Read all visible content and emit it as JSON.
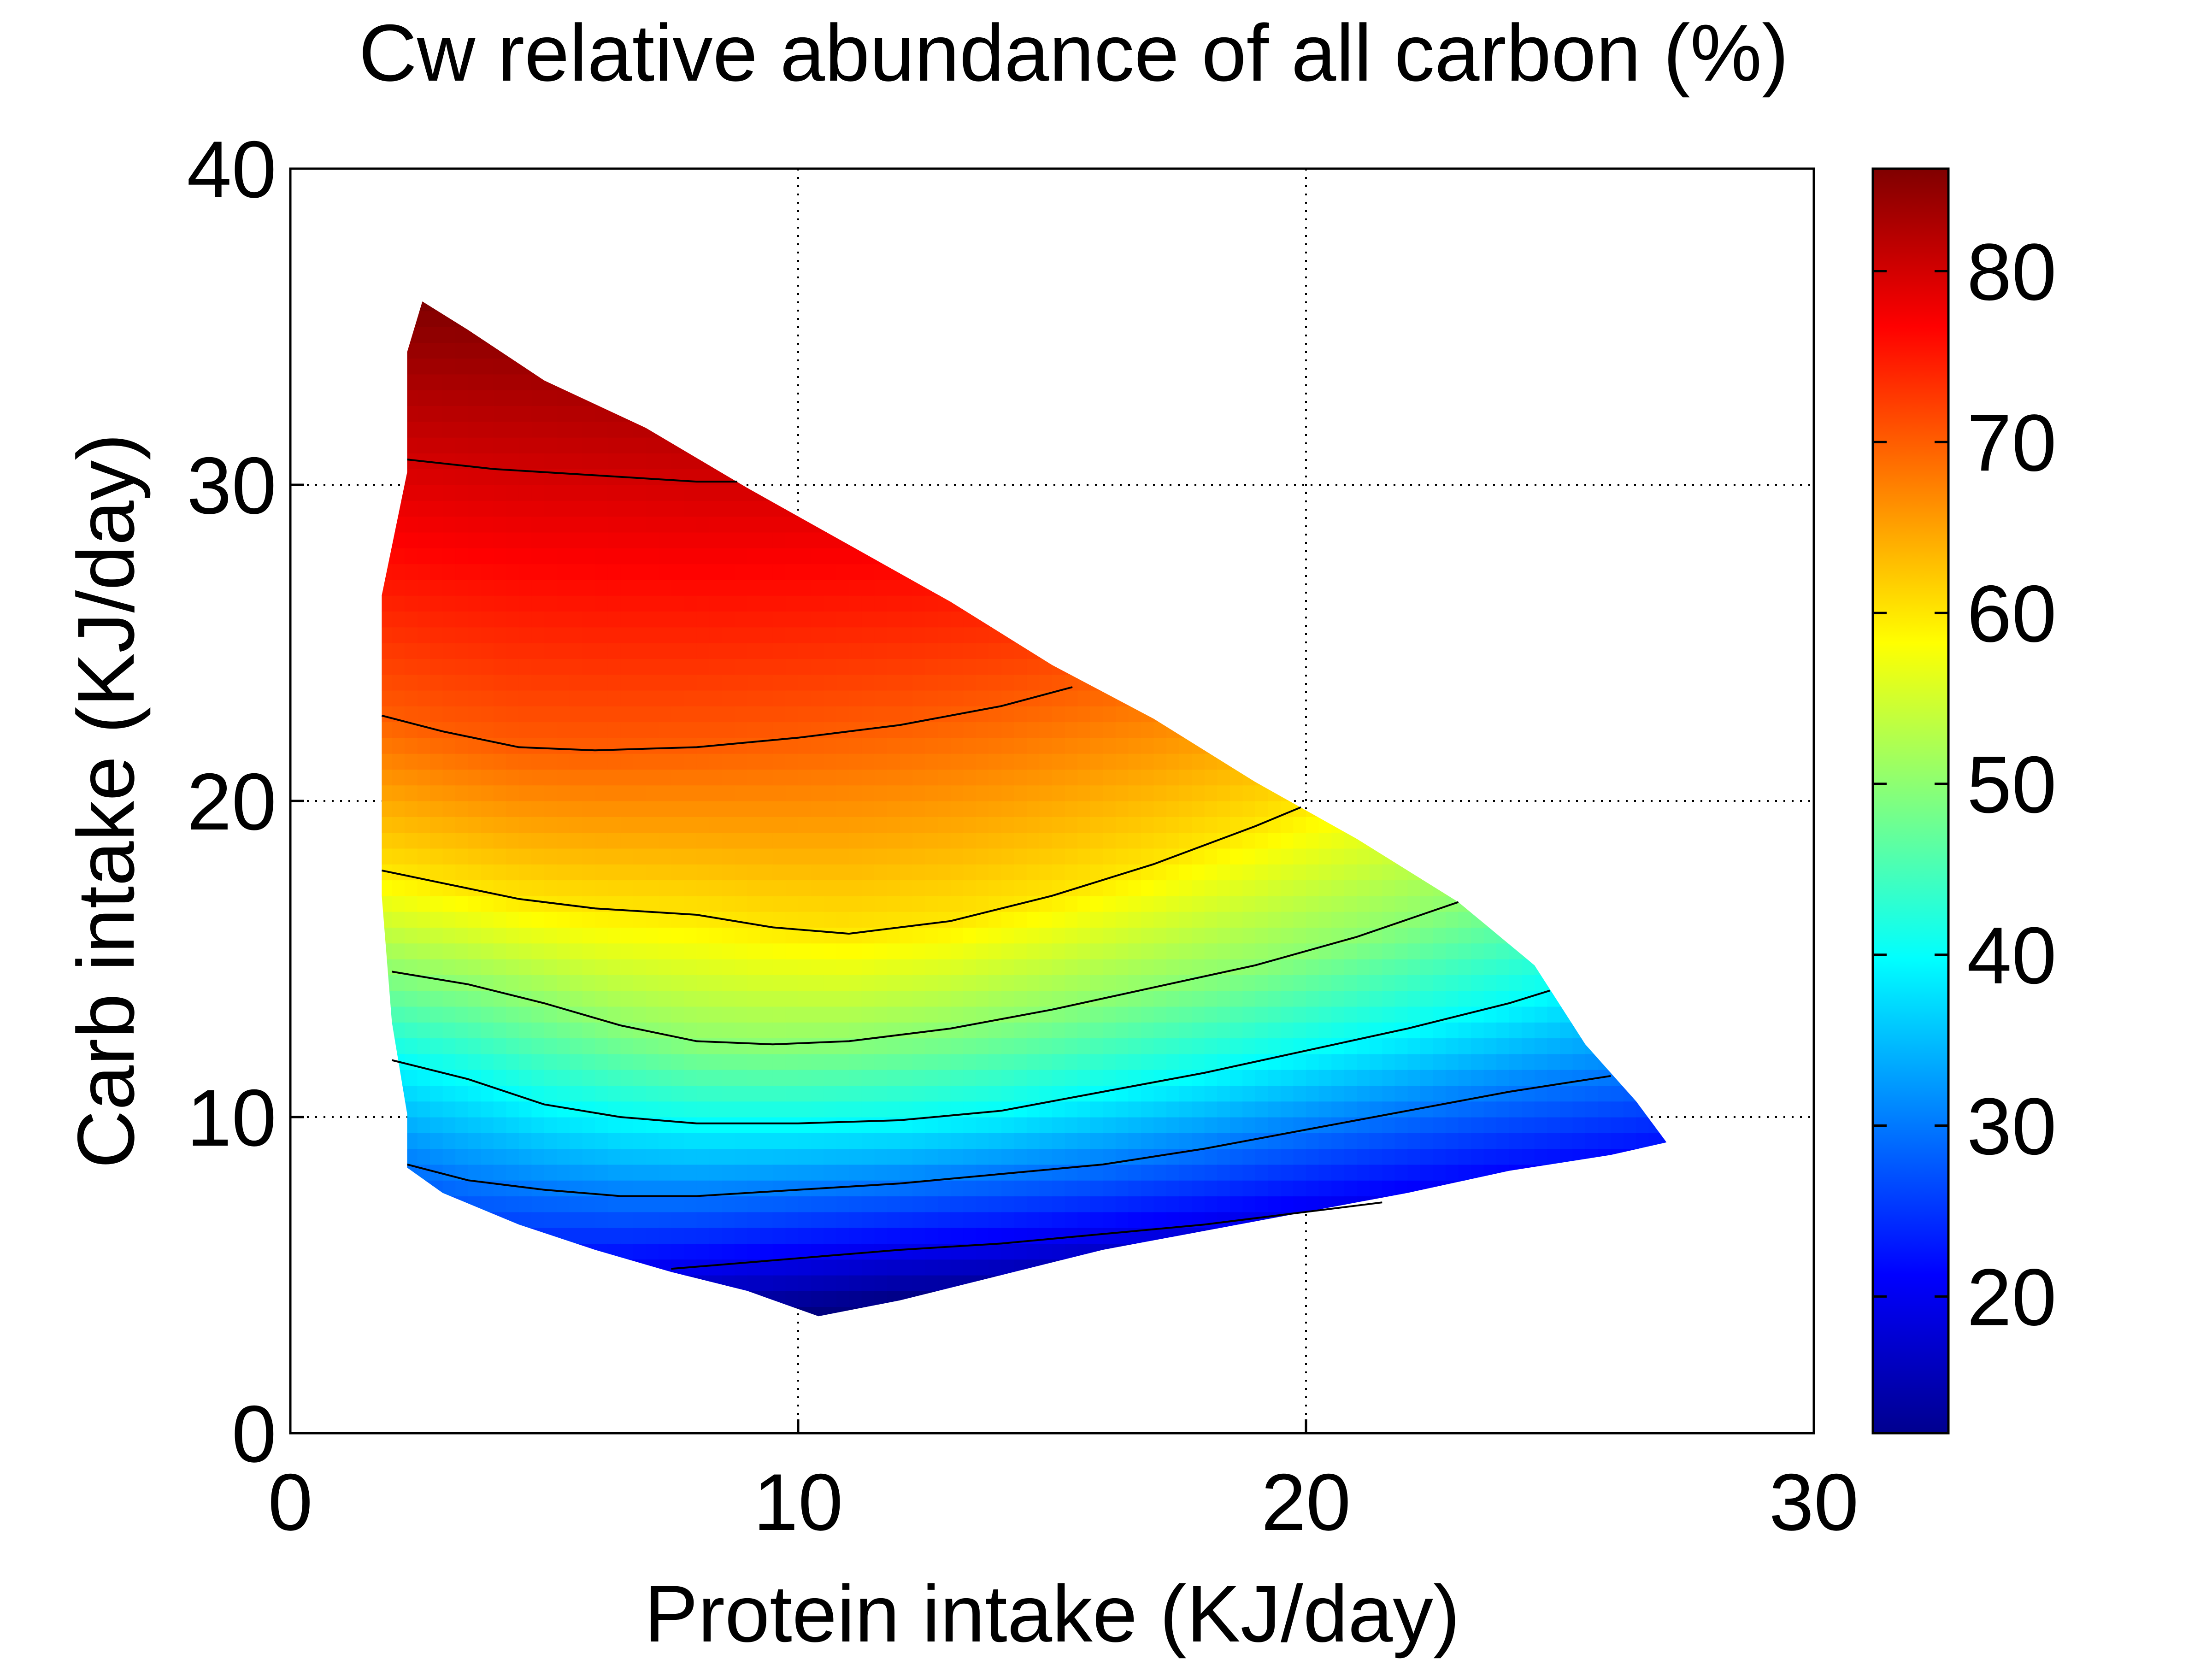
{
  "chart_data": {
    "type": "heatmap",
    "title": "Cw relative abundance of all carbon (%)",
    "xlabel": "Protein intake (KJ/day)",
    "ylabel": "Carb intake (KJ/day)",
    "xlim": [
      0,
      30
    ],
    "ylim": [
      0,
      40
    ],
    "x_ticks": [
      0,
      10,
      20,
      30
    ],
    "y_ticks": [
      0,
      10,
      20,
      30,
      40
    ],
    "grid": true,
    "colormap": "jet",
    "colorbar": {
      "range": [
        12,
        86
      ],
      "ticks": [
        20,
        30,
        40,
        50,
        60,
        70,
        80
      ],
      "placement": "right"
    },
    "domain_boundary": {
      "description_upper": "upper edge of the colored region (protein, carb)",
      "upper": [
        [
          1.8,
          26.5
        ],
        [
          2.3,
          30.4
        ],
        [
          2.3,
          34.2
        ],
        [
          2.6,
          35.8
        ],
        [
          3.5,
          34.9
        ],
        [
          5,
          33.3
        ],
        [
          7,
          31.8
        ],
        [
          9,
          29.9
        ],
        [
          11,
          28.1
        ],
        [
          13,
          26.3
        ],
        [
          15,
          24.3
        ],
        [
          17,
          22.6
        ],
        [
          19,
          20.6
        ],
        [
          21,
          18.8
        ],
        [
          23,
          16.8
        ],
        [
          24.5,
          14.8
        ],
        [
          25.5,
          12.3
        ],
        [
          26.5,
          10.5
        ],
        [
          27.1,
          9.2
        ]
      ],
      "lower": [
        [
          27.1,
          9.2
        ],
        [
          26,
          8.8
        ],
        [
          24,
          8.3
        ],
        [
          22,
          7.6
        ],
        [
          20,
          7.0
        ],
        [
          18,
          6.4
        ],
        [
          16,
          5.8
        ],
        [
          14,
          5.0
        ],
        [
          12,
          4.2
        ],
        [
          10.4,
          3.7
        ],
        [
          9,
          4.5
        ],
        [
          7.5,
          5.1
        ],
        [
          6,
          5.8
        ],
        [
          4.5,
          6.6
        ],
        [
          3,
          7.6
        ],
        [
          2.3,
          8.4
        ],
        [
          2.3,
          10.1
        ],
        [
          2.0,
          13.0
        ],
        [
          1.8,
          17.0
        ]
      ]
    },
    "contour_lines": [
      {
        "level": 80,
        "points": [
          [
            2.3,
            30.8
          ],
          [
            4,
            30.5
          ],
          [
            6,
            30.3
          ],
          [
            8,
            30.1
          ],
          [
            8.8,
            30.1
          ]
        ]
      },
      {
        "level": 70,
        "points": [
          [
            1.8,
            22.7
          ],
          [
            3,
            22.2
          ],
          [
            4.5,
            21.7
          ],
          [
            6,
            21.6
          ],
          [
            8,
            21.7
          ],
          [
            10,
            22.0
          ],
          [
            12,
            22.4
          ],
          [
            14,
            23.0
          ],
          [
            15.4,
            23.6
          ]
        ]
      },
      {
        "level": 60,
        "points": [
          [
            1.8,
            17.8
          ],
          [
            3,
            17.4
          ],
          [
            4.5,
            16.9
          ],
          [
            6,
            16.6
          ],
          [
            8,
            16.4
          ],
          [
            9.5,
            16.0
          ],
          [
            11,
            15.8
          ],
          [
            13,
            16.2
          ],
          [
            15,
            17.0
          ],
          [
            17,
            18.0
          ],
          [
            19,
            19.2
          ],
          [
            19.9,
            19.8
          ]
        ]
      },
      {
        "level": 50,
        "points": [
          [
            2.0,
            14.6
          ],
          [
            3.5,
            14.2
          ],
          [
            5,
            13.6
          ],
          [
            6.5,
            12.9
          ],
          [
            8,
            12.4
          ],
          [
            9.5,
            12.3
          ],
          [
            11,
            12.4
          ],
          [
            13,
            12.8
          ],
          [
            15,
            13.4
          ],
          [
            17,
            14.1
          ],
          [
            19,
            14.8
          ],
          [
            21,
            15.7
          ],
          [
            23,
            16.8
          ]
        ]
      },
      {
        "level": 40,
        "points": [
          [
            2.0,
            11.8
          ],
          [
            3.5,
            11.2
          ],
          [
            5,
            10.4
          ],
          [
            6.5,
            10.0
          ],
          [
            8,
            9.8
          ],
          [
            10,
            9.8
          ],
          [
            12,
            9.9
          ],
          [
            14,
            10.2
          ],
          [
            16,
            10.8
          ],
          [
            18,
            11.4
          ],
          [
            20,
            12.1
          ],
          [
            22,
            12.8
          ],
          [
            24,
            13.6
          ],
          [
            24.8,
            14.0
          ]
        ]
      },
      {
        "level": 30,
        "points": [
          [
            2.3,
            8.5
          ],
          [
            3.5,
            8.0
          ],
          [
            5,
            7.7
          ],
          [
            6.5,
            7.5
          ],
          [
            8,
            7.5
          ],
          [
            10,
            7.7
          ],
          [
            12,
            7.9
          ],
          [
            14,
            8.2
          ],
          [
            16,
            8.5
          ],
          [
            18,
            9.0
          ],
          [
            20,
            9.6
          ],
          [
            22,
            10.2
          ],
          [
            24,
            10.8
          ],
          [
            26.0,
            11.3
          ]
        ]
      },
      {
        "level": 20,
        "points": [
          [
            7.5,
            5.2
          ],
          [
            9,
            5.4
          ],
          [
            10.5,
            5.6
          ],
          [
            12,
            5.8
          ],
          [
            14,
            6.0
          ],
          [
            16,
            6.3
          ],
          [
            18,
            6.6
          ],
          [
            20,
            7.0
          ],
          [
            21.5,
            7.3
          ]
        ]
      }
    ]
  }
}
